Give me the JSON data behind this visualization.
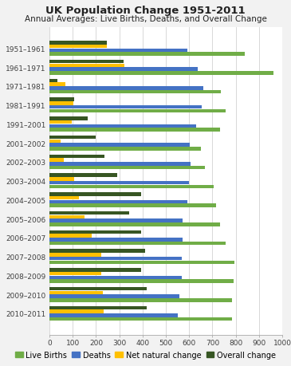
{
  "title": "UK Population Change 1951-2011",
  "subtitle": "Annual Averages: Live Births, Deaths, and Overall Change",
  "categories": [
    "1951–1961",
    "1961–1971",
    "1971–1981",
    "1981–1991",
    "1991–2001",
    "2001–2002",
    "2002–2003",
    "2003–2004",
    "2004–2005",
    "2005–2006",
    "2006–2007",
    "2007–2008",
    "2008–2009",
    "2009–2010",
    "2010–2011"
  ],
  "series": {
    "Live Births": [
      838,
      962,
      736,
      757,
      731,
      651,
      669,
      706,
      716,
      733,
      756,
      793,
      790,
      785,
      783
    ],
    "Deaths": [
      593,
      638,
      662,
      655,
      630,
      602,
      606,
      600,
      591,
      572,
      572,
      570,
      569,
      557,
      552
    ],
    "Net natural change": [
      245,
      323,
      70,
      102,
      96,
      49,
      63,
      106,
      125,
      152,
      183,
      223,
      221,
      228,
      232
    ],
    "Overall change": [
      248,
      318,
      35,
      107,
      163,
      198,
      236,
      292,
      393,
      344,
      393,
      412,
      394,
      418,
      418
    ]
  },
  "colors": {
    "Live Births": "#70ad47",
    "Deaths": "#4472c4",
    "Net natural change": "#ffc000",
    "Overall change": "#375623"
  },
  "legend_labels": [
    "Live Births",
    "Deaths",
    "Net natural change",
    "Overall change"
  ],
  "xlim": [
    0,
    1000
  ],
  "xticks": [
    0,
    100,
    200,
    300,
    400,
    500,
    600,
    700,
    800,
    900,
    1000
  ],
  "background_color": "#f2f2f2",
  "plot_background": "#ffffff",
  "title_fontsize": 9.5,
  "subtitle_fontsize": 7.5,
  "tick_fontsize": 6.5,
  "legend_fontsize": 7.0
}
